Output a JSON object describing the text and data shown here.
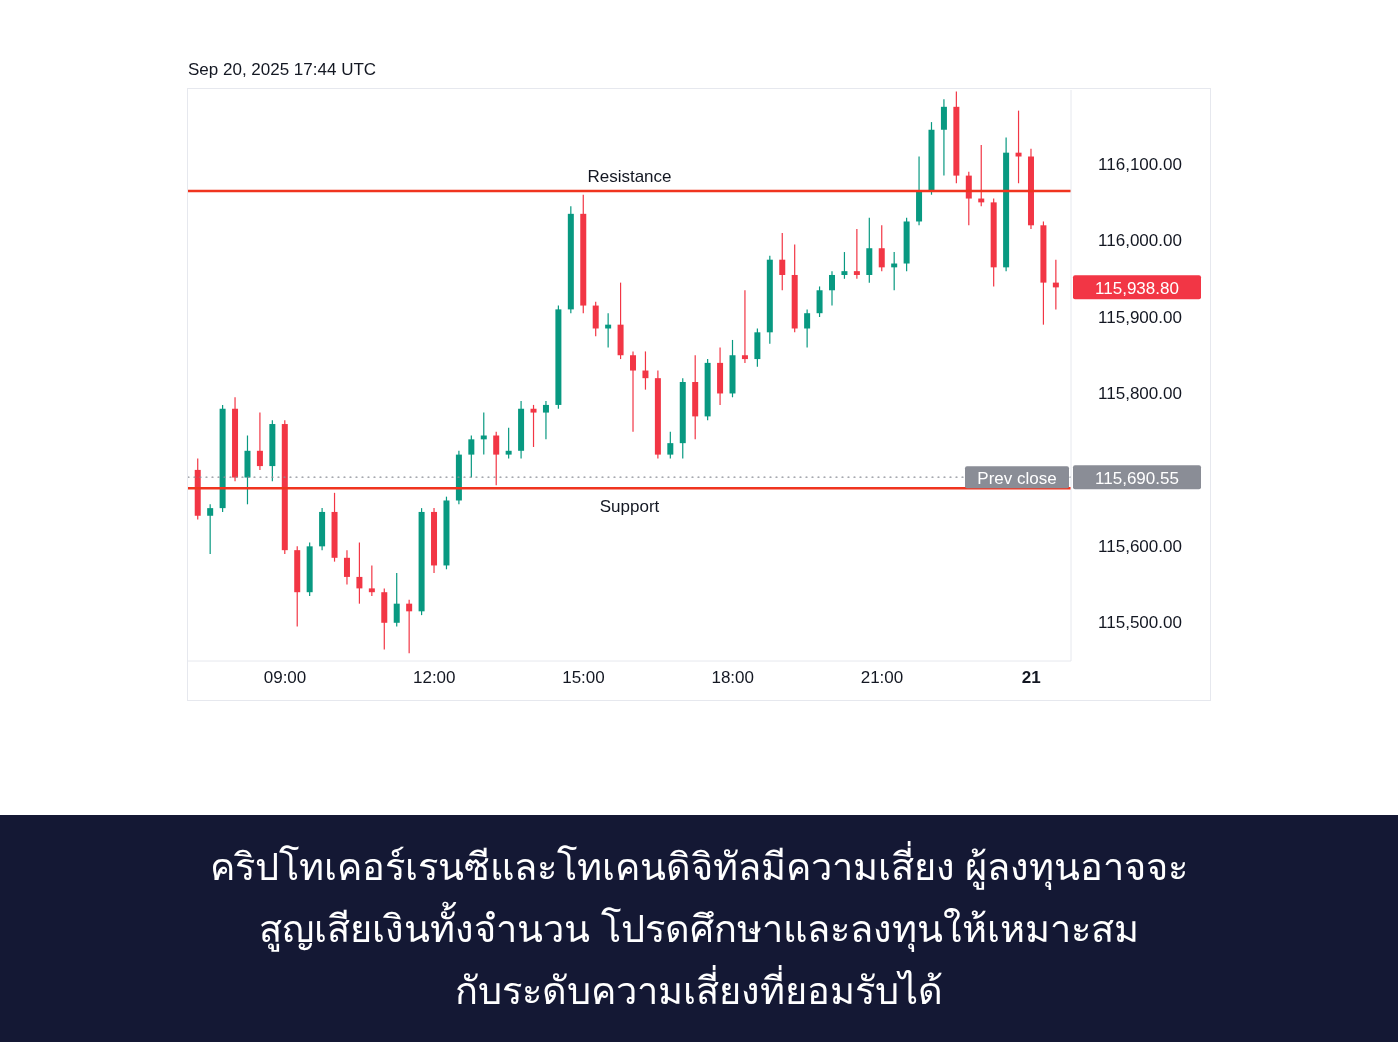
{
  "chart_data": {
    "type": "candlestick",
    "title": "Sep 20, 2025 17:44 UTC",
    "x": [
      "2025-09-20T07:15",
      "2025-09-20T07:30",
      "2025-09-20T07:45",
      "2025-09-20T08:00",
      "2025-09-20T08:15",
      "2025-09-20T08:30",
      "2025-09-20T08:45",
      "2025-09-20T09:00",
      "2025-09-20T09:15",
      "2025-09-20T09:30",
      "2025-09-20T09:45",
      "2025-09-20T10:00",
      "2025-09-20T10:15",
      "2025-09-20T10:30",
      "2025-09-20T10:45",
      "2025-09-20T11:00",
      "2025-09-20T11:15",
      "2025-09-20T11:30",
      "2025-09-20T11:45",
      "2025-09-20T12:00",
      "2025-09-20T12:15",
      "2025-09-20T12:30",
      "2025-09-20T12:45",
      "2025-09-20T13:00",
      "2025-09-20T13:15",
      "2025-09-20T13:30",
      "2025-09-20T13:45",
      "2025-09-20T14:00",
      "2025-09-20T14:15",
      "2025-09-20T14:30",
      "2025-09-20T14:45",
      "2025-09-20T15:00",
      "2025-09-20T15:15",
      "2025-09-20T15:30",
      "2025-09-20T15:45",
      "2025-09-20T16:00",
      "2025-09-20T16:15",
      "2025-09-20T16:30",
      "2025-09-20T16:45",
      "2025-09-20T17:00",
      "2025-09-20T17:15",
      "2025-09-20T17:30",
      "2025-09-20T17:45",
      "2025-09-20T18:00",
      "2025-09-20T18:15",
      "2025-09-20T18:30",
      "2025-09-20T18:45",
      "2025-09-20T19:00",
      "2025-09-20T19:15",
      "2025-09-20T19:30",
      "2025-09-20T19:45",
      "2025-09-20T20:00",
      "2025-09-20T20:15",
      "2025-09-20T20:30",
      "2025-09-20T20:45",
      "2025-09-20T21:00",
      "2025-09-20T21:15",
      "2025-09-20T21:30",
      "2025-09-20T21:45",
      "2025-09-20T22:00",
      "2025-09-20T22:15",
      "2025-09-20T22:30",
      "2025-09-20T22:45",
      "2025-09-20T23:00",
      "2025-09-20T23:15",
      "2025-09-20T23:30",
      "2025-09-20T23:45",
      "2025-09-21T00:00",
      "2025-09-21T00:15",
      "2025-09-21T00:30"
    ],
    "ohlc": [
      [
        115700,
        115715,
        115635,
        115640
      ],
      [
        115640,
        115655,
        115590,
        115650
      ],
      [
        115650,
        115785,
        115645,
        115780
      ],
      [
        115780,
        115795,
        115685,
        115690
      ],
      [
        115690,
        115745,
        115655,
        115725
      ],
      [
        115725,
        115775,
        115700,
        115705
      ],
      [
        115705,
        115765,
        115685,
        115760
      ],
      [
        115760,
        115765,
        115590,
        115595
      ],
      [
        115595,
        115600,
        115495,
        115540
      ],
      [
        115540,
        115605,
        115535,
        115600
      ],
      [
        115600,
        115650,
        115595,
        115645
      ],
      [
        115645,
        115670,
        115580,
        115585
      ],
      [
        115585,
        115595,
        115550,
        115560
      ],
      [
        115560,
        115605,
        115525,
        115545
      ],
      [
        115545,
        115575,
        115535,
        115540
      ],
      [
        115540,
        115545,
        115465,
        115500
      ],
      [
        115500,
        115565,
        115495,
        115525
      ],
      [
        115525,
        115530,
        115460,
        115515
      ],
      [
        115515,
        115650,
        115510,
        115645
      ],
      [
        115645,
        115650,
        115565,
        115575
      ],
      [
        115575,
        115665,
        115570,
        115660
      ],
      [
        115660,
        115725,
        115655,
        115720
      ],
      [
        115720,
        115745,
        115690,
        115740
      ],
      [
        115740,
        115775,
        115720,
        115745
      ],
      [
        115745,
        115750,
        115680,
        115720
      ],
      [
        115720,
        115755,
        115715,
        115725
      ],
      [
        115725,
        115790,
        115715,
        115780
      ],
      [
        115780,
        115785,
        115730,
        115775
      ],
      [
        115775,
        115790,
        115740,
        115785
      ],
      [
        115785,
        115915,
        115780,
        115910
      ],
      [
        115910,
        116045,
        115905,
        116035
      ],
      [
        116035,
        116060,
        115905,
        115915
      ],
      [
        115915,
        115920,
        115875,
        115885
      ],
      [
        115885,
        115905,
        115860,
        115890
      ],
      [
        115890,
        115945,
        115845,
        115850
      ],
      [
        115850,
        115855,
        115750,
        115830
      ],
      [
        115830,
        115855,
        115805,
        115820
      ],
      [
        115820,
        115830,
        115715,
        115720
      ],
      [
        115720,
        115750,
        115715,
        115735
      ],
      [
        115735,
        115820,
        115715,
        115815
      ],
      [
        115815,
        115850,
        115740,
        115770
      ],
      [
        115770,
        115845,
        115765,
        115840
      ],
      [
        115840,
        115860,
        115785,
        115800
      ],
      [
        115800,
        115870,
        115795,
        115850
      ],
      [
        115850,
        115935,
        115840,
        115845
      ],
      [
        115845,
        115885,
        115835,
        115880
      ],
      [
        115880,
        115980,
        115865,
        115975
      ],
      [
        115975,
        116010,
        115935,
        115955
      ],
      [
        115955,
        115995,
        115880,
        115885
      ],
      [
        115885,
        115910,
        115860,
        115905
      ],
      [
        115905,
        115940,
        115900,
        115935
      ],
      [
        115935,
        115960,
        115915,
        115955
      ],
      [
        115955,
        115985,
        115950,
        115960
      ],
      [
        115960,
        116015,
        115950,
        115955
      ],
      [
        115955,
        116030,
        115945,
        115990
      ],
      [
        115990,
        116020,
        115960,
        115965
      ],
      [
        115965,
        115985,
        115935,
        115970
      ],
      [
        115970,
        116030,
        115960,
        116025
      ],
      [
        116025,
        116110,
        116020,
        116065
      ],
      [
        116065,
        116155,
        116060,
        116145
      ],
      [
        116145,
        116185,
        116085,
        116175
      ],
      [
        116175,
        116195,
        116075,
        116085
      ],
      [
        116085,
        116090,
        116020,
        116055
      ],
      [
        116055,
        116125,
        116045,
        116050
      ],
      [
        116050,
        116055,
        115940,
        115965
      ],
      [
        115965,
        116135,
        115960,
        116115
      ],
      [
        116115,
        116170,
        116075,
        116110
      ],
      [
        116110,
        116120,
        116015,
        116020
      ],
      [
        116020,
        116025,
        115890,
        115945
      ],
      [
        115945,
        115975,
        115910,
        115938.8
      ]
    ],
    "colors": [
      "#f23645",
      "#089981",
      "#089981",
      "#f23645",
      "#089981",
      "#f23645",
      "#089981",
      "#f23645",
      "#f23645",
      "#089981",
      "#089981",
      "#f23645",
      "#f23645",
      "#f23645",
      "#f23645",
      "#f23645",
      "#089981",
      "#f23645",
      "#089981",
      "#f23645",
      "#089981",
      "#089981",
      "#089981",
      "#089981",
      "#f23645",
      "#089981",
      "#089981",
      "#f23645",
      "#089981",
      "#089981",
      "#089981",
      "#f23645",
      "#f23645",
      "#089981",
      "#f23645",
      "#f23645",
      "#f23645",
      "#f23645",
      "#089981",
      "#089981",
      "#f23645",
      "#089981",
      "#f23645",
      "#089981",
      "#f23645",
      "#089981",
      "#089981",
      "#f23645",
      "#f23645",
      "#089981",
      "#089981",
      "#089981",
      "#089981",
      "#f23645",
      "#089981",
      "#f23645",
      "#089981",
      "#089981",
      "#089981",
      "#089981",
      "#089981",
      "#f23645",
      "#f23645",
      "#f23645",
      "#f23645",
      "#089981",
      "#f23645",
      "#f23645",
      "#f23645",
      "#f23645"
    ],
    "xlim": [
      "2025-09-20T07:03",
      "2025-09-21T00:48"
    ],
    "xticks": [
      {
        "value": "2025-09-20T09:00",
        "label": "09:00"
      },
      {
        "value": "2025-09-20T12:00",
        "label": "12:00"
      },
      {
        "value": "2025-09-20T15:00",
        "label": "15:00"
      },
      {
        "value": "2025-09-20T18:00",
        "label": "18:00"
      },
      {
        "value": "2025-09-20T21:00",
        "label": "21:00"
      },
      {
        "value": "2025-09-21T00:00",
        "label": "21"
      }
    ],
    "ylim": [
      115450,
      116197
    ],
    "yticks": [
      {
        "value": 115500,
        "label": "115,500.00"
      },
      {
        "value": 115600,
        "label": "115,600.00"
      },
      {
        "value": 115690.55,
        "label": "115,690.55"
      },
      {
        "value": 115800,
        "label": "115,800.00"
      },
      {
        "value": 115900,
        "label": "115,900.00"
      },
      {
        "value": 115938.8,
        "label": "115,938.80"
      },
      {
        "value": 116000,
        "label": "116,000.00"
      },
      {
        "value": 116100,
        "label": "116,100.00"
      }
    ],
    "ref_lines": [
      {
        "axis": "y",
        "value": 116065,
        "label": "Resistance",
        "color": "#f0341f",
        "line_style": "solid"
      },
      {
        "axis": "y",
        "value": 115676,
        "label": "Support",
        "color": "#f0341f",
        "line_style": "solid"
      },
      {
        "axis": "y",
        "value": 115690.55,
        "label": "Prev close",
        "color": "#8a8d96",
        "line_style": "dotted"
      }
    ],
    "annotations": [
      "คริปโทเคอร์เรนซีและโทเคนดิจิทัลมีความเสี่ยง ผู้ลงทุนอาจจะ\nสูญเสียเงินทั้งจำนวน โปรดศึกษาและลงทุนให้เหมาะสม\nกับระดับความเสี่ยงที่ยอมรับได้"
    ]
  }
}
